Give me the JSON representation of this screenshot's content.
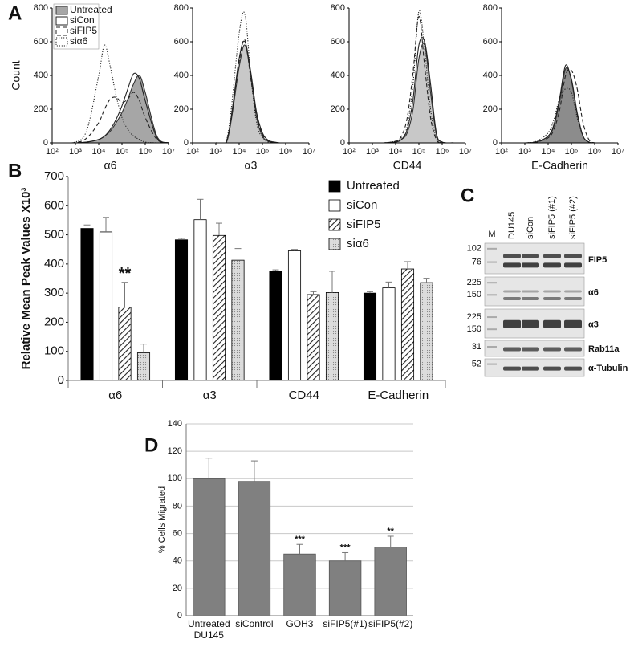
{
  "panels": [
    "A",
    "B",
    "C",
    "D"
  ],
  "chart_data": [
    {
      "type": "line",
      "xlabel": "α6",
      "ylabel": "Count",
      "log_x": true,
      "legend": "upper left",
      "x": [
        100,
        1000,
        3162,
        10000,
        17783,
        31623,
        56234,
        100000,
        177828,
        316228,
        562341,
        1000000,
        3162278,
        10000000
      ],
      "xlim": [
        100,
        10000000
      ],
      "xticks": [
        {
          "value": 100,
          "label": "10²"
        },
        {
          "value": 1000,
          "label": "10³"
        },
        {
          "value": 10000,
          "label": "10⁴"
        },
        {
          "value": 100000,
          "label": "10⁵"
        },
        {
          "value": 1000000,
          "label": "10⁶"
        },
        {
          "value": 10000000,
          "label": "10⁷"
        }
      ],
      "ylim": [
        0,
        800
      ],
      "yticks": [
        0,
        200,
        400,
        600,
        800
      ],
      "series": [
        {
          "name": "Untreated",
          "style": "filled",
          "color": "#333333",
          "fill": "#a6a6a6",
          "values": [
            0,
            0,
            5,
            20,
            40,
            70,
            120,
            180,
            260,
            350,
            400,
            300,
            40,
            0
          ]
        },
        {
          "name": "siCon",
          "style": "solid",
          "color": "#222222",
          "values": [
            0,
            0,
            5,
            20,
            40,
            80,
            140,
            220,
            320,
            410,
            380,
            250,
            30,
            0
          ]
        },
        {
          "name": "siFIP5",
          "style": "dashed",
          "color": "#222222",
          "values": [
            0,
            2,
            30,
            120,
            200,
            260,
            270,
            240,
            260,
            300,
            250,
            150,
            20,
            0
          ]
        },
        {
          "name": "siα6",
          "style": "dotted",
          "color": "#222222",
          "values": [
            0,
            5,
            80,
            400,
            580,
            450,
            280,
            150,
            80,
            40,
            20,
            5,
            0,
            0
          ]
        }
      ]
    },
    {
      "type": "line",
      "xlabel": "α3",
      "log_x": true,
      "x": [
        100,
        1000,
        3162,
        10000,
        17783,
        31623,
        56234,
        100000,
        177828,
        316228,
        562341,
        1000000,
        3162278,
        10000000
      ],
      "xlim": [
        100,
        10000000
      ],
      "xticks": [
        {
          "value": 100,
          "label": "10²"
        },
        {
          "value": 1000,
          "label": "10³"
        },
        {
          "value": 10000,
          "label": "10⁴"
        },
        {
          "value": 100000,
          "label": "10⁵"
        },
        {
          "value": 1000000,
          "label": "10⁶"
        },
        {
          "value": 10000000,
          "label": "10⁷"
        }
      ],
      "ylim": [
        0,
        800
      ],
      "yticks": [
        0,
        200,
        400,
        600,
        800
      ],
      "series": [
        {
          "style": "filled",
          "color": "#333333",
          "fill": "#c8c8c8",
          "values": [
            0,
            0,
            20,
            450,
            580,
            400,
            150,
            40,
            10,
            0,
            0,
            0,
            0,
            0
          ]
        },
        {
          "style": "solid",
          "color": "#222222",
          "values": [
            0,
            0,
            30,
            500,
            600,
            420,
            180,
            60,
            15,
            5,
            0,
            0,
            0,
            0
          ]
        },
        {
          "style": "dashed",
          "color": "#222222",
          "values": [
            0,
            0,
            25,
            480,
            610,
            380,
            160,
            50,
            10,
            0,
            0,
            0,
            0,
            0
          ]
        },
        {
          "style": "dotted",
          "color": "#222222",
          "values": [
            0,
            0,
            40,
            650,
            760,
            400,
            120,
            30,
            5,
            0,
            0,
            0,
            0,
            0
          ]
        }
      ]
    },
    {
      "type": "line",
      "xlabel": "CD44",
      "log_x": true,
      "x": [
        100,
        1000,
        3162,
        10000,
        17783,
        31623,
        56234,
        100000,
        177828,
        316228,
        562341,
        1000000,
        3162278,
        10000000
      ],
      "xlim": [
        100,
        10000000
      ],
      "xticks": [
        {
          "value": 100,
          "label": "10²"
        },
        {
          "value": 1000,
          "label": "10³"
        },
        {
          "value": 10000,
          "label": "10⁴"
        },
        {
          "value": 100000,
          "label": "10⁵"
        },
        {
          "value": 1000000,
          "label": "10⁶"
        },
        {
          "value": 10000000,
          "label": "10⁷"
        }
      ],
      "ylim": [
        0,
        800
      ],
      "yticks": [
        0,
        200,
        400,
        600,
        800
      ],
      "series": [
        {
          "style": "filled",
          "color": "#333333",
          "fill": "#c8c8c8",
          "values": [
            0,
            0,
            0,
            5,
            20,
            60,
            200,
            500,
            580,
            300,
            50,
            5,
            0,
            0
          ]
        },
        {
          "style": "solid",
          "color": "#222222",
          "values": [
            0,
            0,
            0,
            5,
            20,
            80,
            260,
            580,
            600,
            350,
            60,
            5,
            0,
            0
          ]
        },
        {
          "style": "dashed",
          "color": "#222222",
          "values": [
            0,
            0,
            0,
            10,
            40,
            150,
            420,
            750,
            450,
            150,
            20,
            0,
            0,
            0
          ]
        },
        {
          "style": "dotted",
          "color": "#222222",
          "values": [
            0,
            0,
            0,
            10,
            30,
            100,
            350,
            780,
            550,
            200,
            30,
            0,
            0,
            0
          ]
        }
      ]
    },
    {
      "type": "line",
      "xlabel": "E-Cadherin",
      "log_x": true,
      "x": [
        100,
        1000,
        3162,
        10000,
        17783,
        31623,
        56234,
        100000,
        177828,
        316228,
        562341,
        1000000,
        3162278,
        10000000
      ],
      "xlim": [
        100,
        10000000
      ],
      "xticks": [
        {
          "value": 100,
          "label": "10²"
        },
        {
          "value": 1000,
          "label": "10³"
        },
        {
          "value": 10000,
          "label": "10⁴"
        },
        {
          "value": 100000,
          "label": "10⁵"
        },
        {
          "value": 1000000,
          "label": "10⁶"
        },
        {
          "value": 10000000,
          "label": "10⁷"
        }
      ],
      "ylim": [
        0,
        800
      ],
      "yticks": [
        0,
        200,
        400,
        600,
        800
      ],
      "series": [
        {
          "style": "filled",
          "color": "#333333",
          "fill": "#8c8c8c",
          "values": [
            0,
            0,
            5,
            40,
            100,
            250,
            440,
            380,
            180,
            40,
            5,
            0,
            0,
            0
          ]
        },
        {
          "style": "solid",
          "color": "#222222",
          "values": [
            0,
            0,
            5,
            40,
            110,
            270,
            460,
            370,
            170,
            40,
            5,
            0,
            0,
            0
          ]
        },
        {
          "style": "dashed",
          "color": "#222222",
          "values": [
            0,
            0,
            5,
            30,
            80,
            200,
            400,
            430,
            320,
            120,
            20,
            0,
            0,
            0
          ]
        },
        {
          "style": "dotted",
          "color": "#222222",
          "values": [
            0,
            0,
            10,
            60,
            140,
            270,
            320,
            300,
            150,
            40,
            5,
            0,
            0,
            0
          ]
        }
      ]
    },
    {
      "type": "bar",
      "ylabel": "Relative Mean Peak Values X10³",
      "legend": "upper right",
      "categories": [
        "α6",
        "α3",
        "CD44",
        "E-Cadherin"
      ],
      "ylim": [
        0,
        700
      ],
      "yticks": [
        0,
        100,
        200,
        300,
        400,
        500,
        600,
        700
      ],
      "series": [
        {
          "name": "Untreated",
          "color": "#000000",
          "values": [
            522,
            483,
            375,
            300
          ],
          "errors": [
            12,
            5,
            5,
            5
          ]
        },
        {
          "name": "siCon",
          "color": "#ffffff",
          "values": [
            510,
            552,
            445,
            318
          ],
          "errors": [
            50,
            70,
            5,
            20
          ]
        },
        {
          "name": "siFIP5",
          "color": "#ffffff",
          "pattern": "hatch",
          "values": [
            252,
            498,
            295,
            383
          ],
          "errors": [
            85,
            42,
            10,
            25
          ],
          "labels": [
            "**",
            null,
            null,
            null
          ]
        },
        {
          "name": "siα6",
          "color": "#dcdcdc",
          "pattern": "dots",
          "values": [
            95,
            413,
            302,
            336
          ],
          "errors": [
            30,
            40,
            73,
            15
          ]
        }
      ]
    },
    {
      "type": "bar",
      "ylabel": "% Cells Migrated",
      "grid": true,
      "color": "#808080",
      "categories": [
        "Untreated DU145",
        "siControl",
        "GOH3",
        "siFIP5(#1)",
        "siFIP5(#2)"
      ],
      "values": [
        100,
        98,
        45,
        40,
        50
      ],
      "errors": [
        15,
        15,
        7,
        6,
        8
      ],
      "labels": [
        null,
        null,
        "***",
        "***",
        "**"
      ],
      "ylim": [
        0,
        140
      ],
      "yticks": [
        0,
        20,
        40,
        60,
        80,
        100,
        120,
        140
      ]
    }
  ],
  "blot": {
    "lanes": [
      "M",
      "DU145",
      "siCon",
      "siFIP5 (#1)",
      "siFIP5 (#2)"
    ],
    "blots": [
      {
        "label": "FIP5",
        "markers": [
          "102",
          "76"
        ]
      },
      {
        "label": "α6",
        "markers": [
          "225",
          "150"
        ]
      },
      {
        "label": "α3",
        "markers": [
          "225",
          "150"
        ]
      },
      {
        "label": "Rab11a",
        "markers": [
          "31"
        ]
      },
      {
        "label": "α-Tubulin",
        "markers": [
          "52"
        ]
      }
    ]
  }
}
